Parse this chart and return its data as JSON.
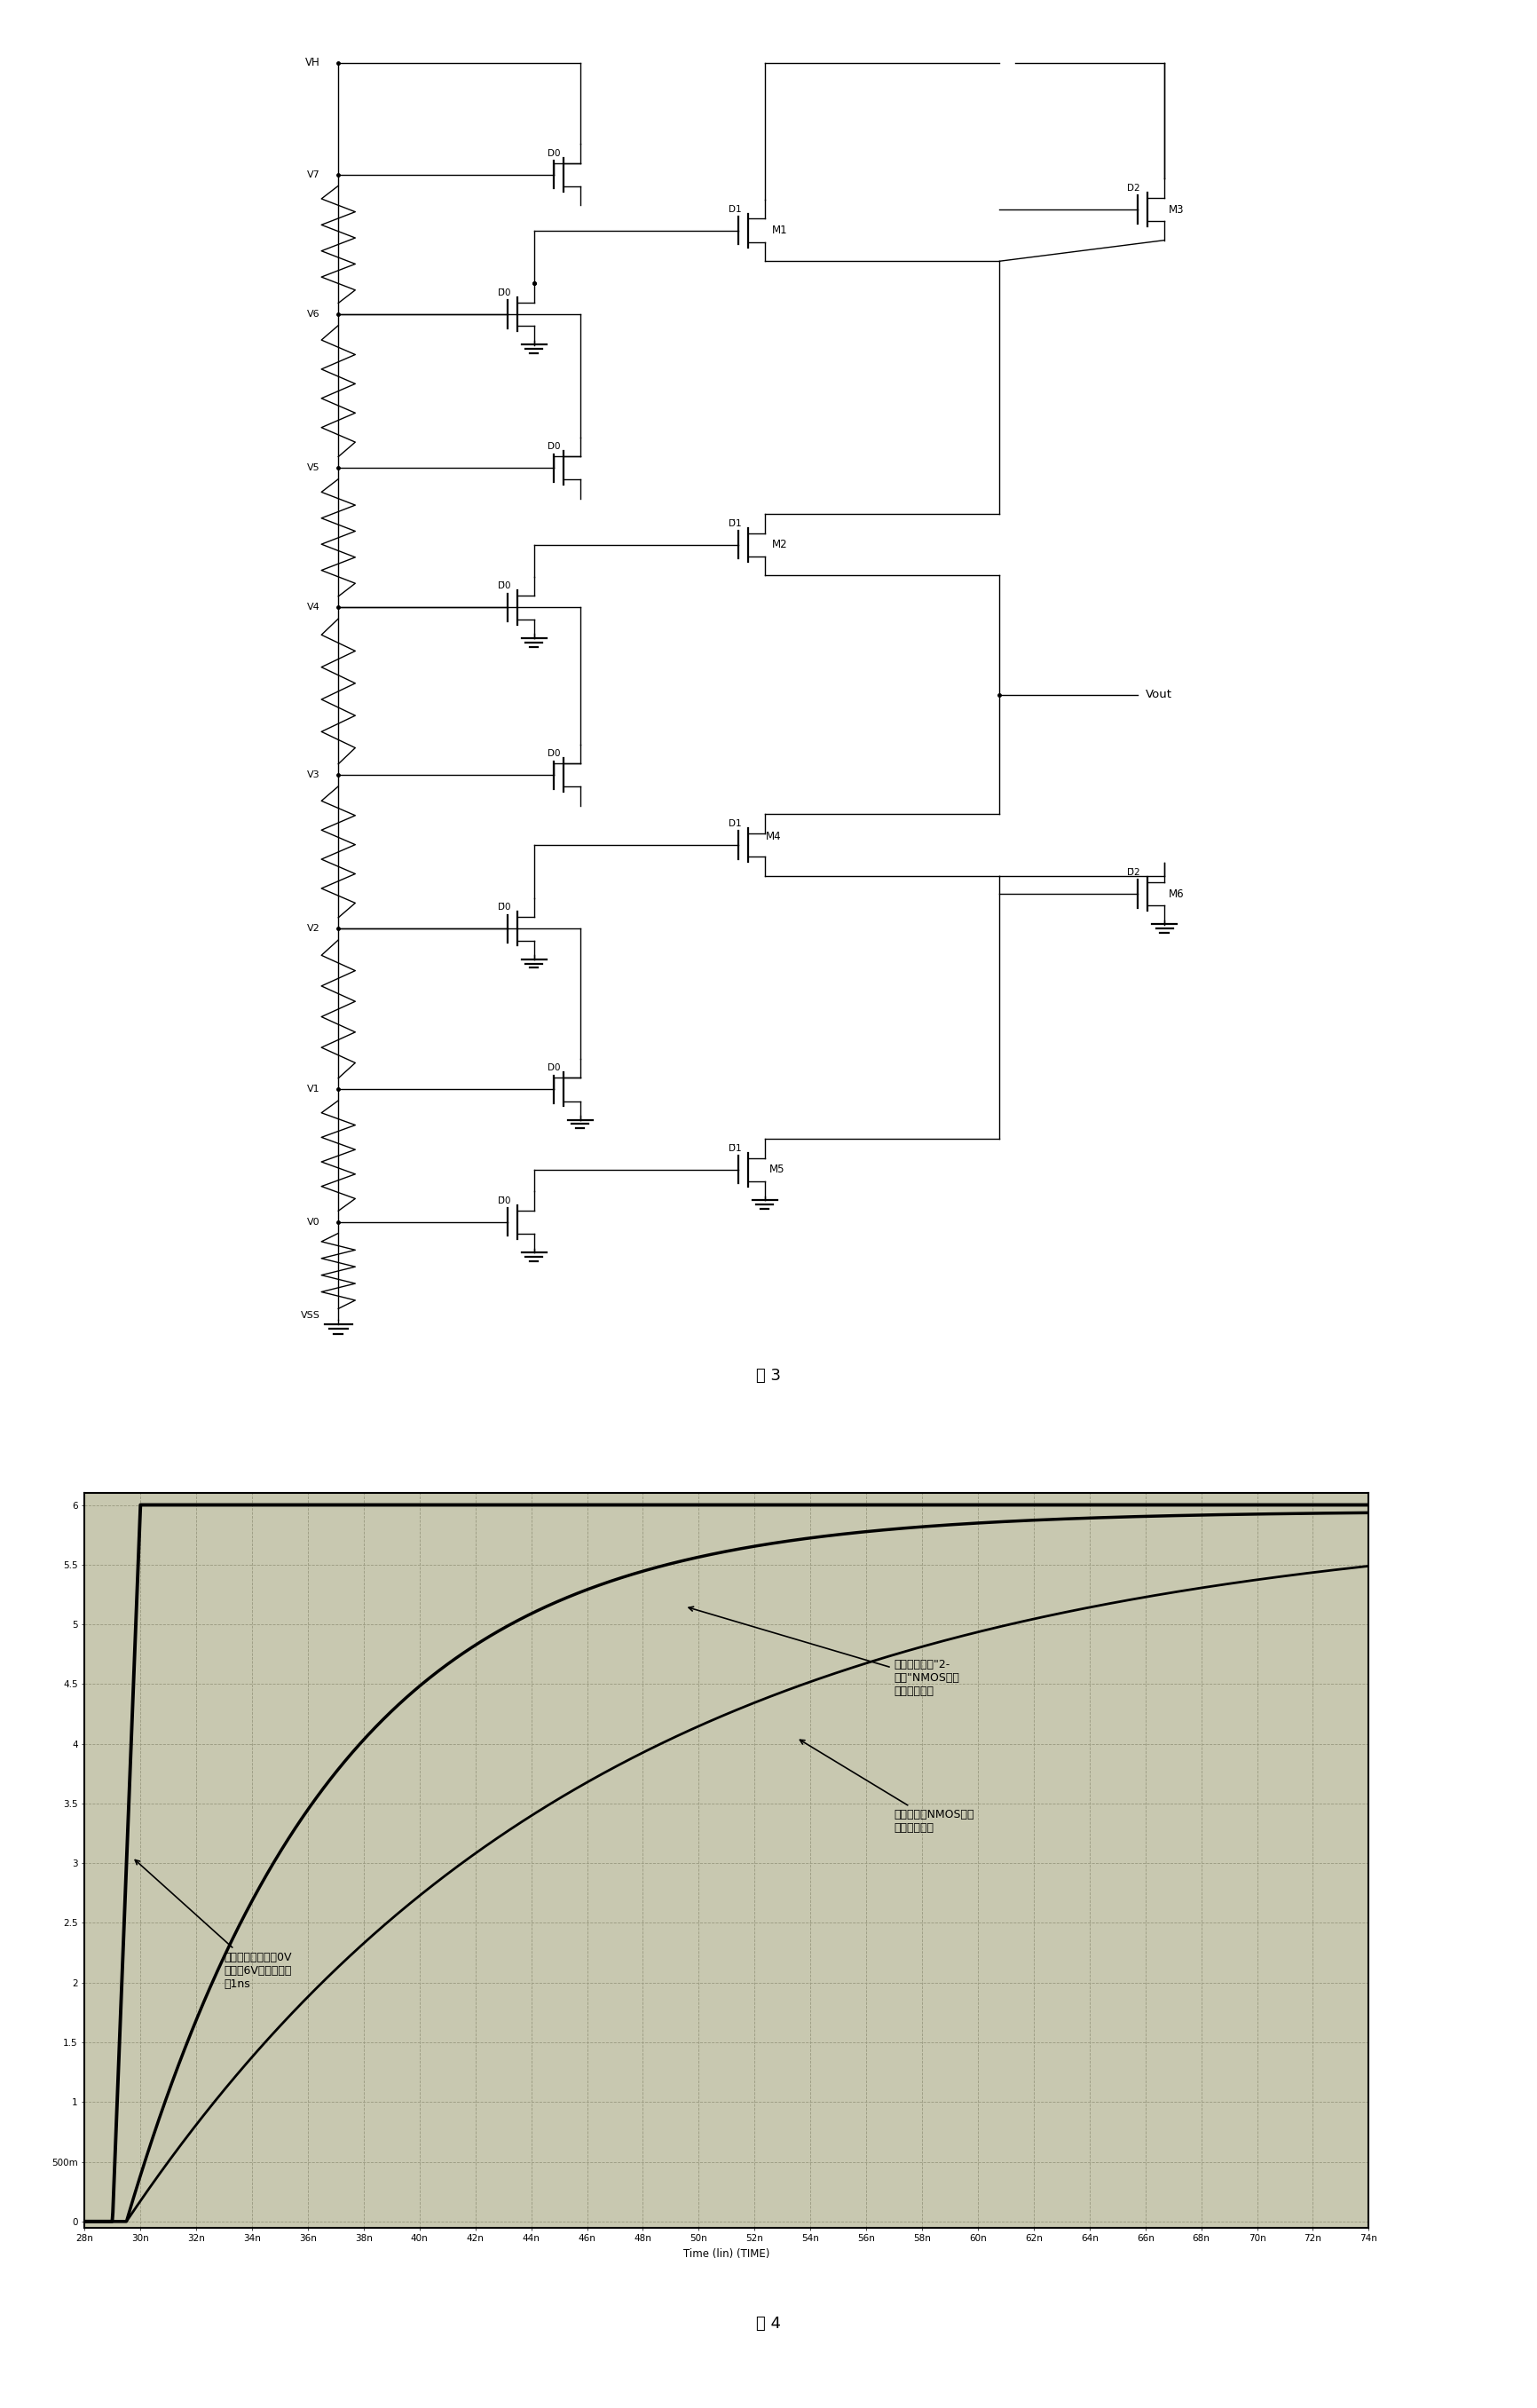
{
  "fig3_label": "图 3",
  "fig4_label": "图 4",
  "fig4_xlabel": "Time (lin) (TIME)",
  "fig4_ylim_min": -0.05,
  "fig4_ylim_max": 6.1,
  "fig4_xlim_min": 28,
  "fig4_xlim_max": 74,
  "annotation1": "本发明技术下\"2-\n阈值\"NMOS开关\n网络延时曲线",
  "annotation2": "现有技术下NMOS开关\n网络延时曲线",
  "annotation3": "阶跃信号输入：由0V\n阶跃到6V，上升时间\n为1ns",
  "bg_color": "#c8c8b0",
  "grid_color": "#999980"
}
